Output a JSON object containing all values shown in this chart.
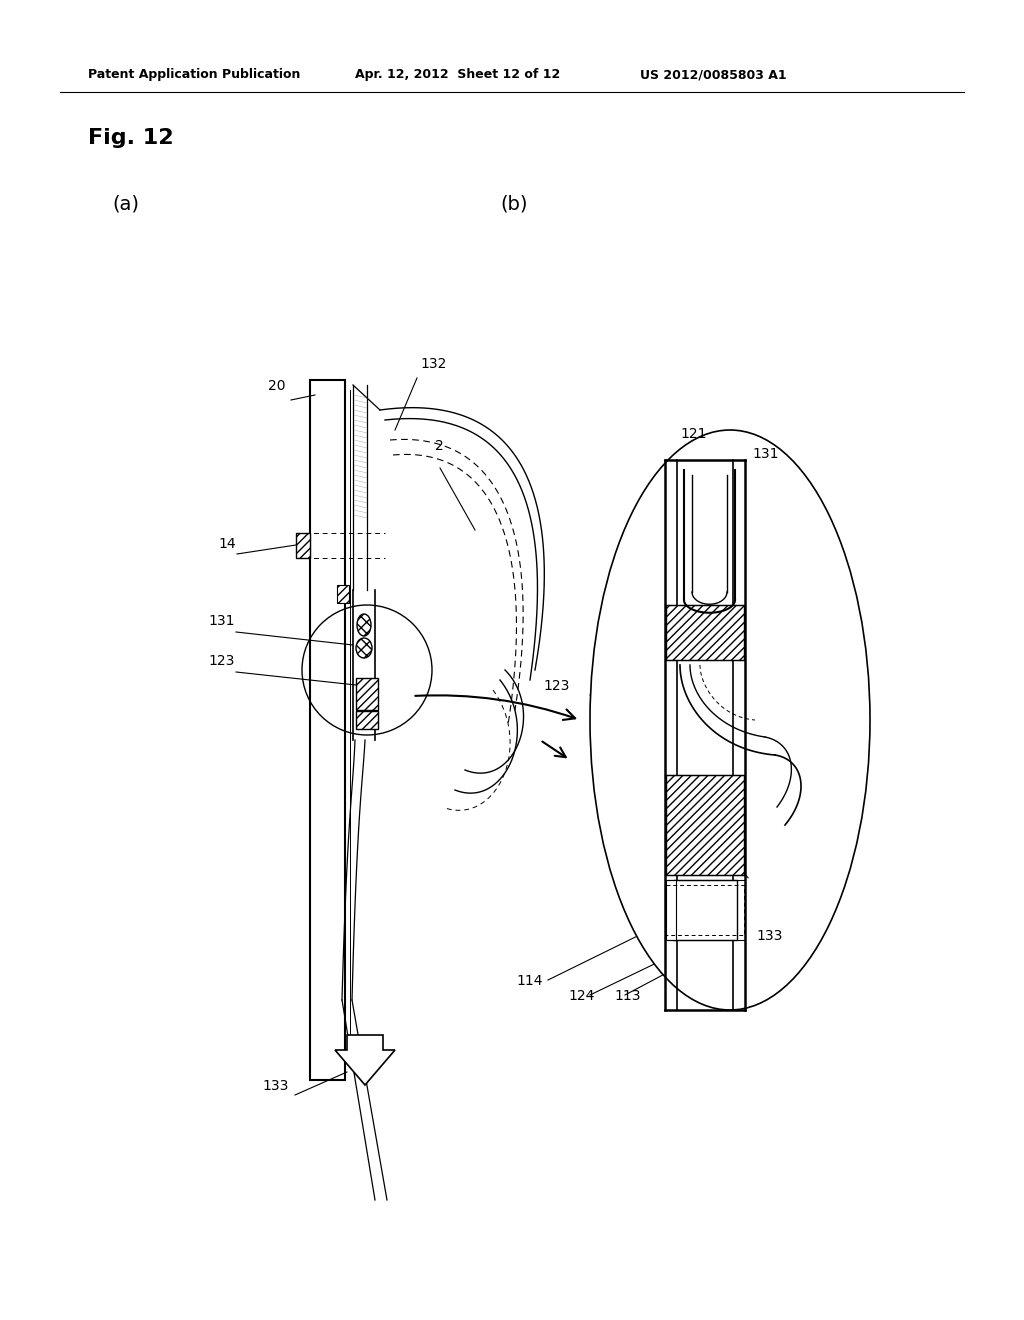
{
  "bg_color": "#ffffff",
  "header_text1": "Patent Application Publication",
  "header_text2": "Apr. 12, 2012  Sheet 12 of 12",
  "header_text3": "US 2012/0085803 A1",
  "fig_label": "Fig. 12",
  "sub_a": "(a)",
  "sub_b": "(b)"
}
